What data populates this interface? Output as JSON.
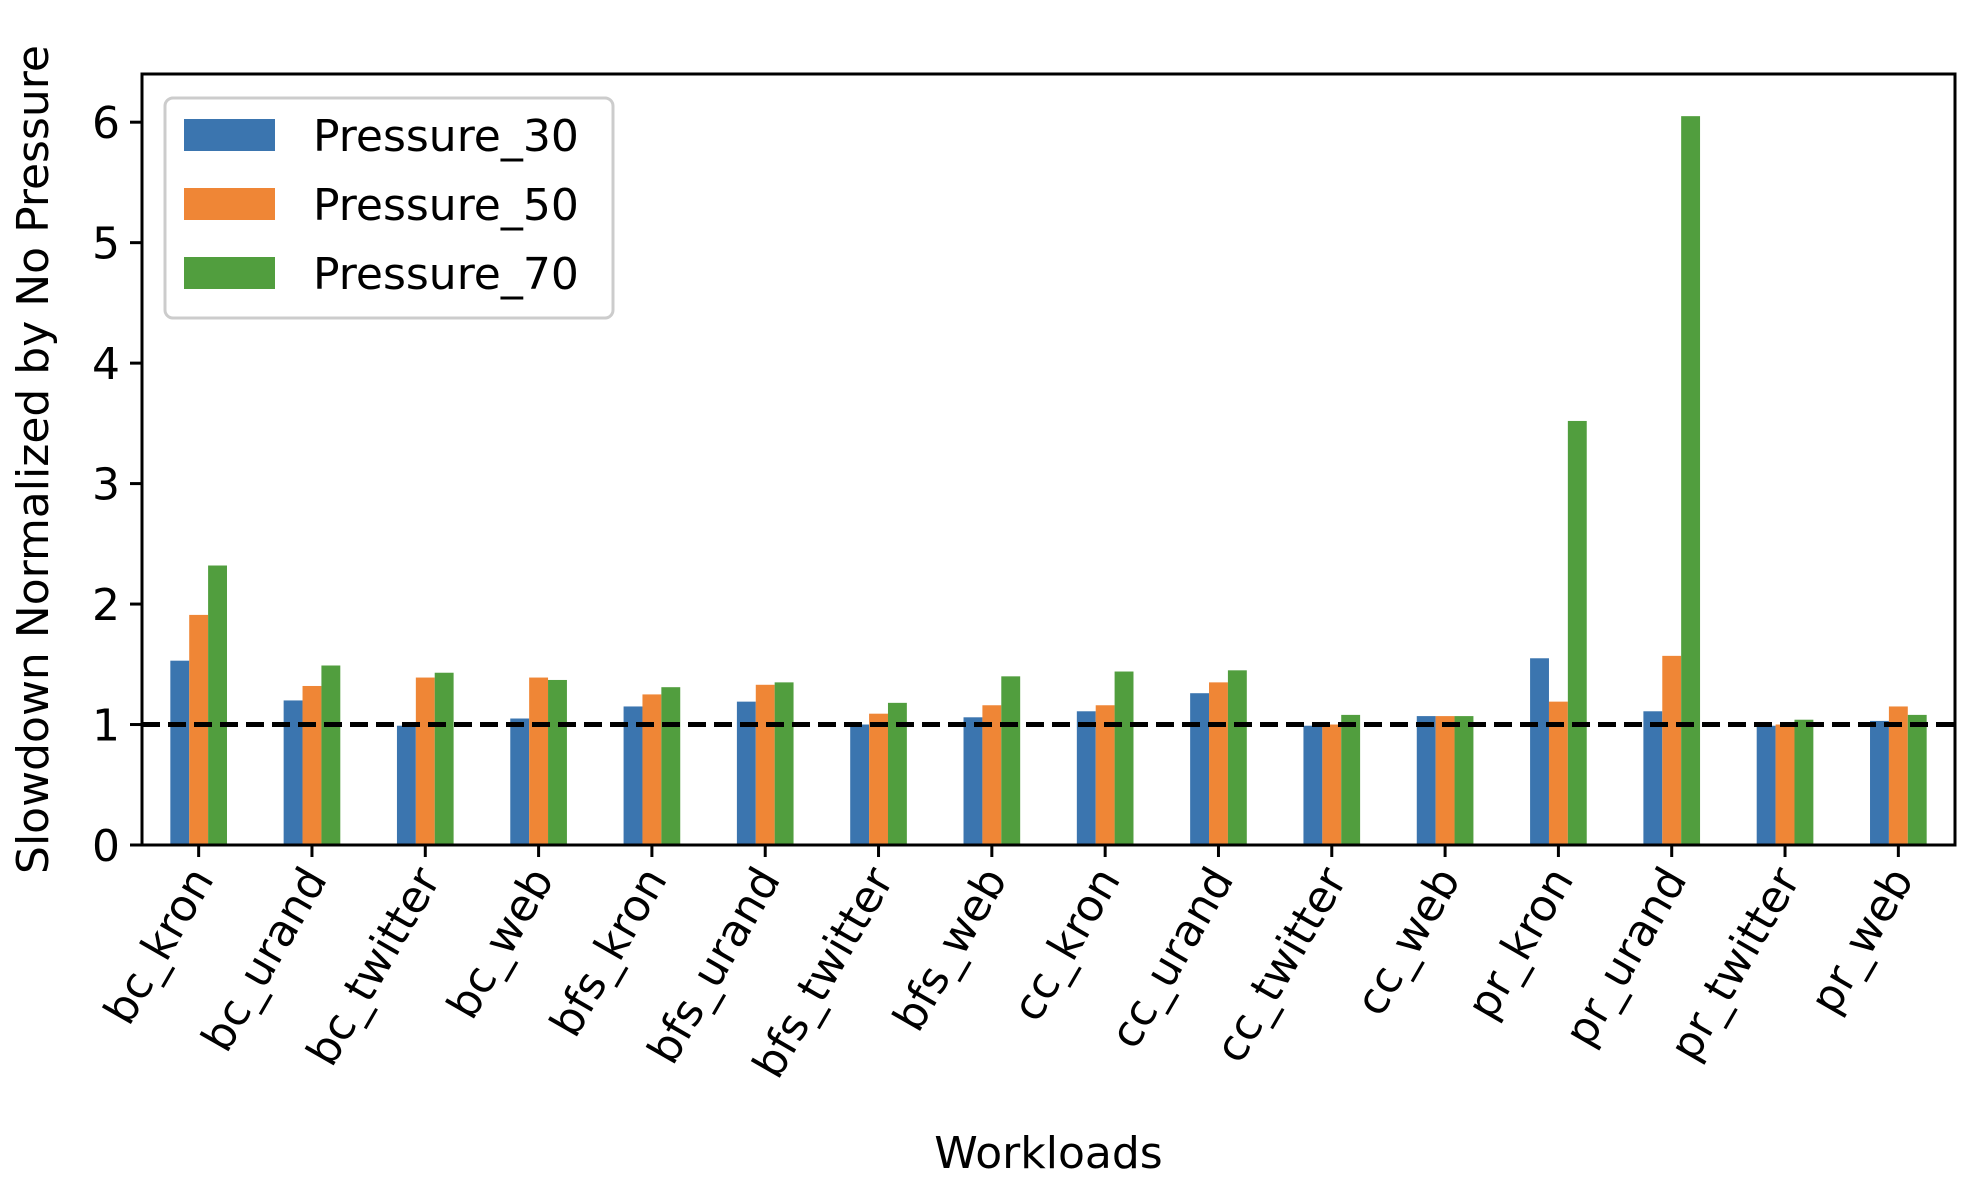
{
  "chart_data": {
    "type": "bar",
    "title": "",
    "xlabel": "Workloads",
    "ylabel": "Slowdown Normalized by No Pressure",
    "ylim": [
      0,
      6.4
    ],
    "yticks": [
      0,
      1,
      2,
      3,
      4,
      5,
      6
    ],
    "grid": false,
    "legend_position": "top-left",
    "reference_line": {
      "y": 1,
      "style": "dashed",
      "color": "#000000"
    },
    "categories": [
      "bc_kron",
      "bc_urand",
      "bc_twitter",
      "bc_web",
      "bfs_kron",
      "bfs_urand",
      "bfs_twitter",
      "bfs_web",
      "cc_kron",
      "cc_urand",
      "cc_twitter",
      "cc_web",
      "pr_kron",
      "pr_urand",
      "pr_twitter",
      "pr_web"
    ],
    "series": [
      {
        "name": "Pressure_30",
        "color": "#3b75af",
        "values": [
          1.53,
          1.2,
          0.99,
          1.05,
          1.15,
          1.19,
          1.0,
          1.06,
          1.11,
          1.26,
          0.99,
          1.07,
          1.55,
          1.11,
          0.99,
          1.03
        ]
      },
      {
        "name": "Pressure_50",
        "color": "#ef8636",
        "values": [
          1.91,
          1.32,
          1.39,
          1.39,
          1.25,
          1.33,
          1.09,
          1.16,
          1.16,
          1.35,
          1.0,
          1.07,
          1.19,
          1.57,
          1.0,
          1.15
        ]
      },
      {
        "name": "Pressure_70",
        "color": "#519e3e",
        "values": [
          2.32,
          1.49,
          1.43,
          1.37,
          1.31,
          1.35,
          1.18,
          1.4,
          1.44,
          1.45,
          1.08,
          1.07,
          3.52,
          6.05,
          1.04,
          1.08
        ]
      }
    ]
  }
}
